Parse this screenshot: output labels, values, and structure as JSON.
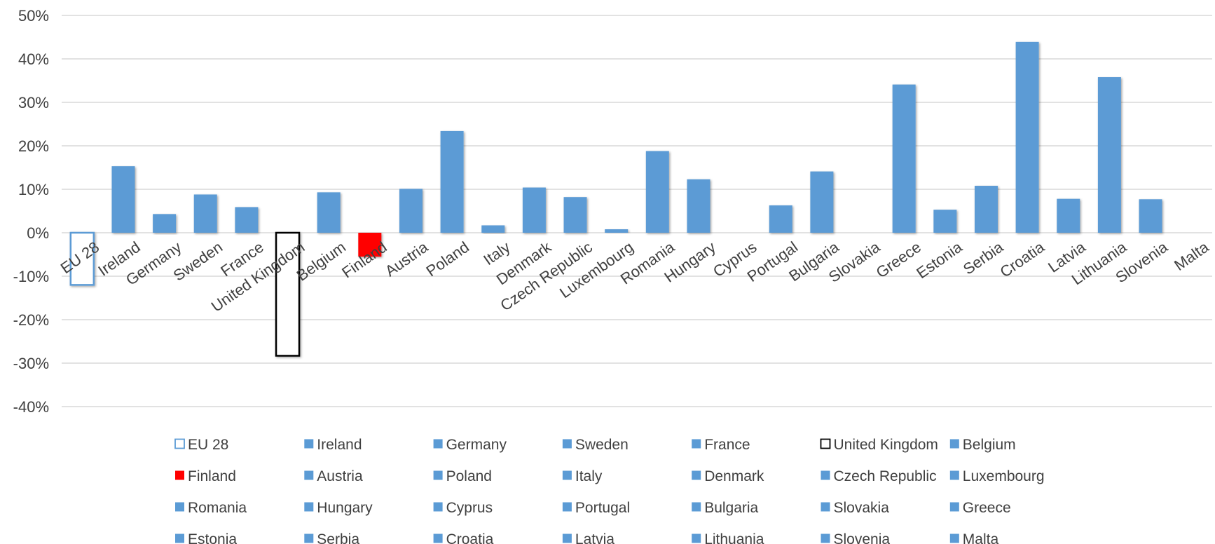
{
  "chart_data": {
    "type": "bar",
    "title": "",
    "xlabel": "",
    "ylabel": "",
    "ylim": [
      -40,
      50
    ],
    "ytick_step": 10,
    "ytick_format": "percent",
    "grid": true,
    "legend_position": "bottom",
    "default_color": "#5B9BD5",
    "categories": [
      "EU 28",
      "Ireland",
      "Germany",
      "Sweden",
      "France",
      "United Kingdom",
      "Belgium",
      "Finland",
      "Austria",
      "Poland",
      "Italy",
      "Denmark",
      "Czech Republic",
      "Luxembourg",
      "Romania",
      "Hungary",
      "Cyprus",
      "Portugal",
      "Bulgaria",
      "Slovakia",
      "Greece",
      "Estonia",
      "Serbia",
      "Croatia",
      "Latvia",
      "Lithuania",
      "Slovenia",
      "Malta"
    ],
    "values": [
      -12,
      15.3,
      4.3,
      8.8,
      5.9,
      -28.3,
      9.3,
      -5.5,
      10.1,
      23.4,
      1.7,
      10.4,
      8.2,
      0.8,
      18.8,
      12.3,
      0,
      6.3,
      14.1,
      0,
      34.1,
      5.3,
      10.8,
      43.9,
      7.8,
      35.8,
      7.7,
      0
    ],
    "styles": {
      "EU 28": {
        "fill": "#ffffff",
        "stroke": "#5B9BD5"
      },
      "United Kingdom": {
        "fill": "#ffffff",
        "stroke": "#000000"
      },
      "Finland": {
        "fill": "#FF0000",
        "stroke": "none"
      }
    }
  }
}
